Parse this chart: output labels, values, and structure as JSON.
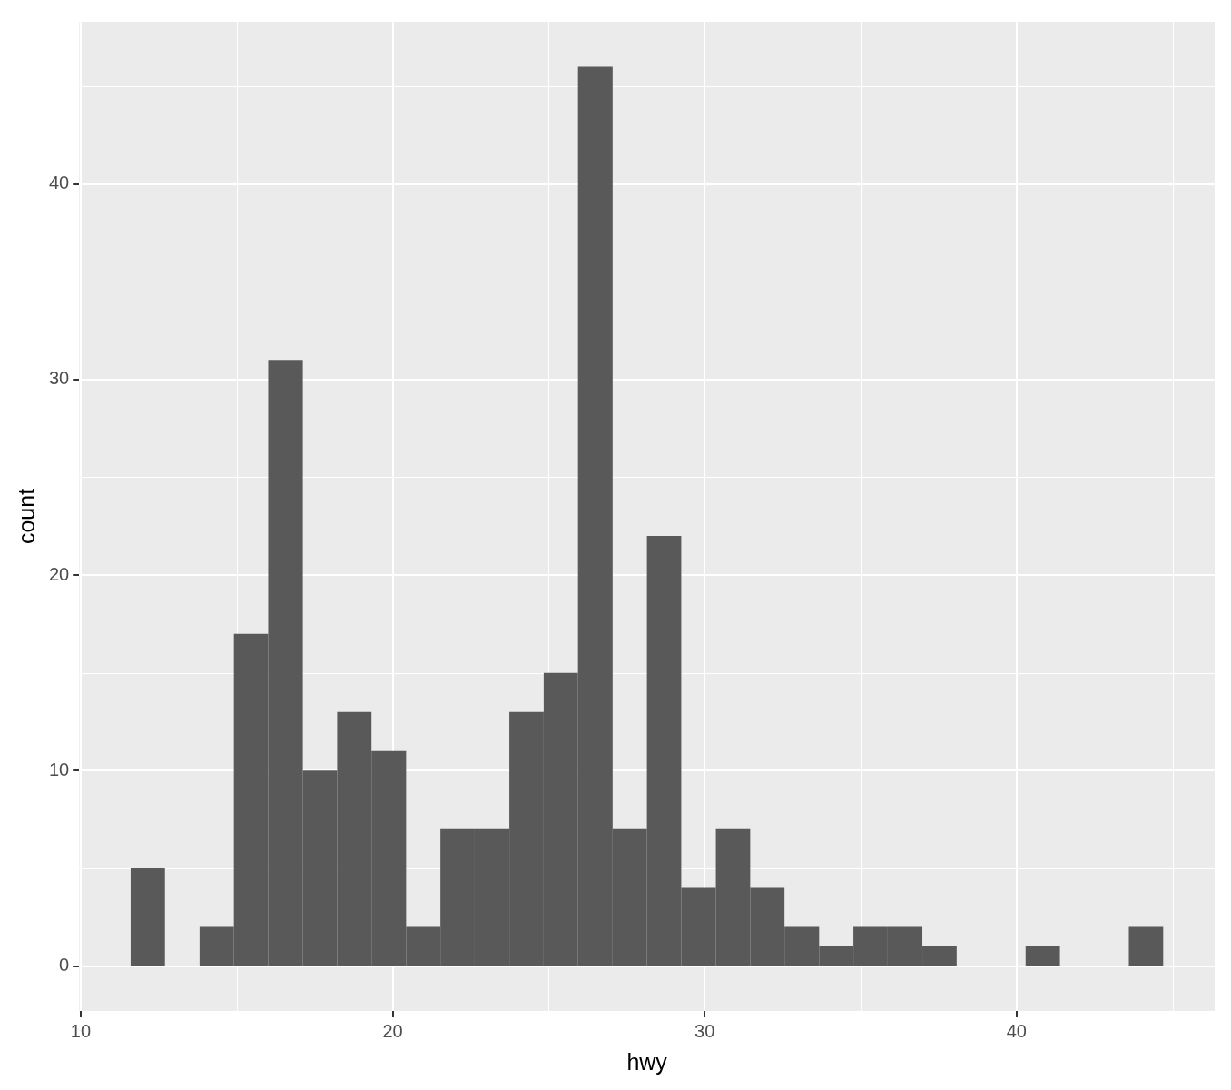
{
  "chart_data": {
    "type": "histogram",
    "xlabel": "hwy",
    "ylabel": "count",
    "color": "#595959",
    "bins": [
      11.6,
      12.7,
      13.81,
      14.91,
      16.01,
      17.12,
      18.22,
      19.32,
      20.43,
      21.53,
      22.63,
      23.74,
      24.84,
      25.94,
      27.05,
      28.15,
      29.25,
      30.36,
      31.46,
      32.56,
      33.67,
      34.77,
      35.87,
      36.98,
      38.08,
      39.18,
      40.29,
      41.39,
      42.49,
      43.6,
      44.7
    ],
    "values": [
      5,
      0,
      2,
      17,
      31,
      10,
      13,
      11,
      2,
      7,
      7,
      13,
      15,
      46,
      7,
      22,
      4,
      7,
      4,
      2,
      1,
      2,
      2,
      1,
      0,
      0,
      1,
      0,
      0,
      2
    ],
    "xlim": [
      9.95,
      46.35
    ],
    "xticks": [
      10,
      20,
      30,
      40
    ],
    "ylim": [
      -2.3,
      48.3
    ],
    "yticks": [
      0,
      10,
      20,
      30,
      40
    ],
    "grid": true
  }
}
